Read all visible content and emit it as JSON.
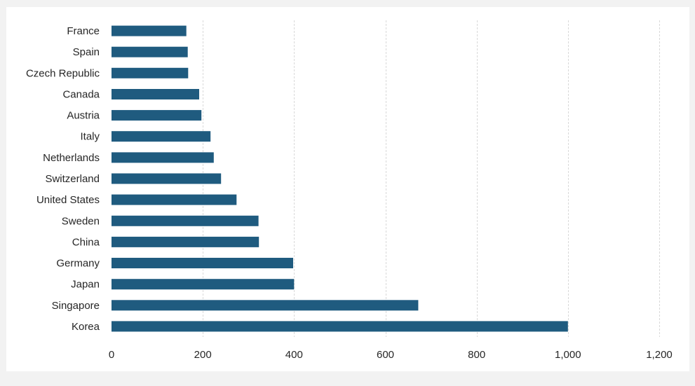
{
  "chart_data": {
    "type": "bar",
    "orientation": "horizontal",
    "title": "",
    "xlabel": "",
    "ylabel": "",
    "categories": [
      "France",
      "Spain",
      "Czech Republic",
      "Canada",
      "Austria",
      "Italy",
      "Netherlands",
      "Switzerland",
      "United States",
      "Sweden",
      "China",
      "Germany",
      "Japan",
      "Singapore",
      "Korea"
    ],
    "values": [
      164,
      167,
      168,
      192,
      197,
      217,
      224,
      240,
      274,
      322,
      323,
      398,
      400,
      672,
      1000
    ],
    "xlim": [
      0,
      1200
    ],
    "xticks": [
      0,
      200,
      400,
      600,
      800,
      1000,
      1200
    ],
    "xtick_labels": [
      "0",
      "200",
      "400",
      "600",
      "800",
      "1,000",
      "1,200"
    ],
    "bar_color": "#1f5b7f",
    "grid": true,
    "grid_color": "#d9d9d9"
  }
}
